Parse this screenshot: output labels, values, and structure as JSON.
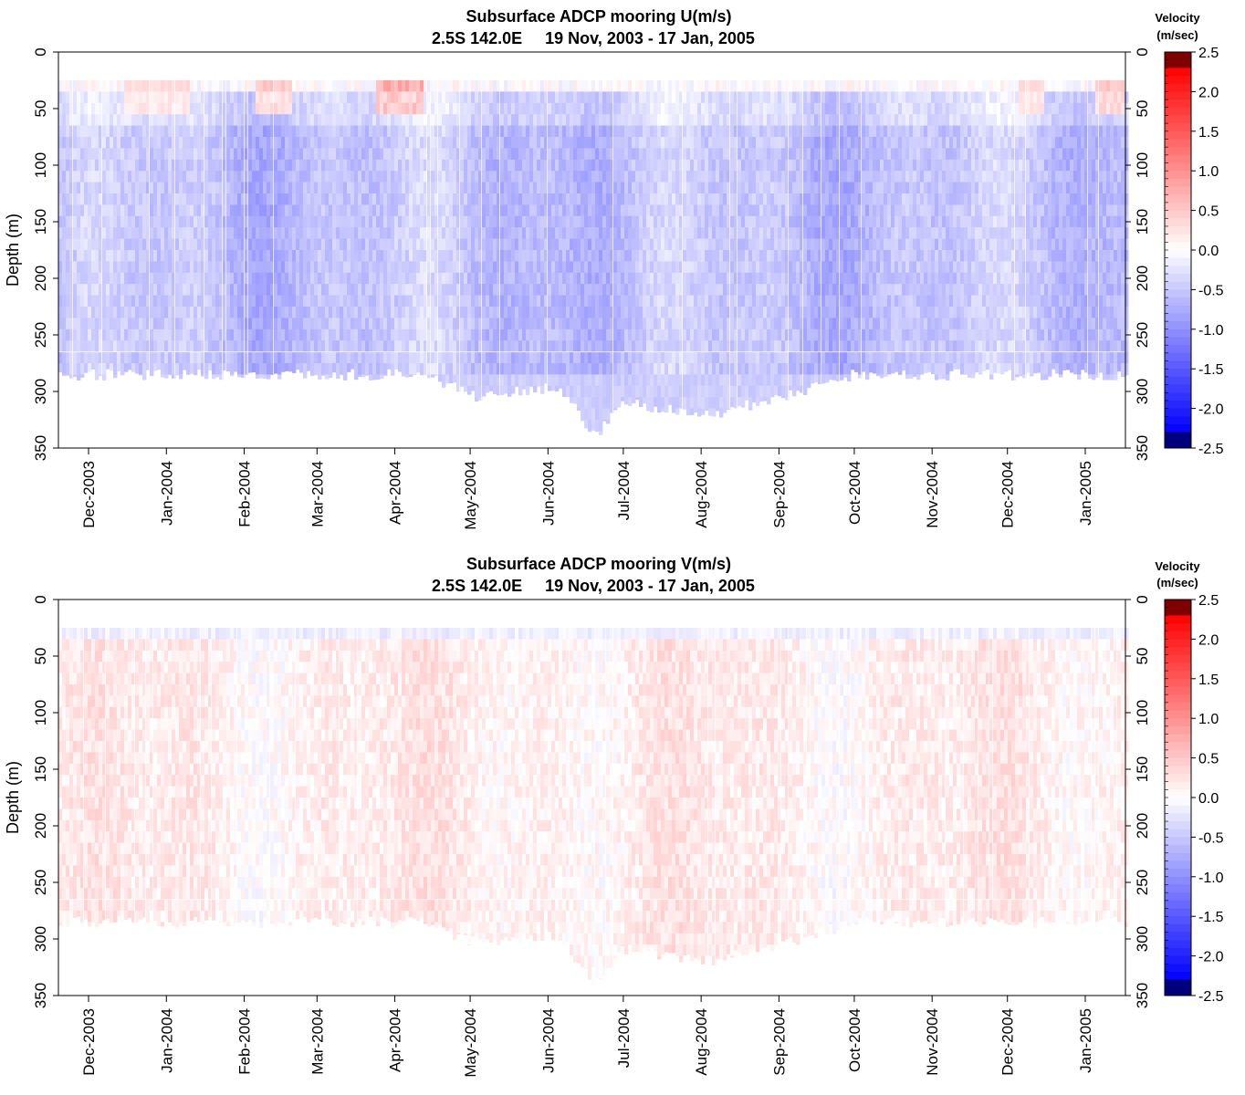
{
  "chart_data": [
    {
      "type": "heatmap",
      "id": "u",
      "title": "Subsurface ADCP mooring U(m/s)",
      "subtitle": "2.5S 142.0E     19 Nov, 2003 - 17 Jan, 2005",
      "ylabel": "Depth (m)",
      "ylim": [
        0,
        350
      ],
      "y_ticks": [
        "0",
        "50",
        "100",
        "150",
        "200",
        "250",
        "300",
        "350"
      ],
      "x_range": [
        "2003-11-19",
        "2005-01-17"
      ],
      "x_ticks": [
        "Dec-2003",
        "Jan-2004",
        "Feb-2004",
        "Mar-2004",
        "Apr-2004",
        "May-2004",
        "Jun-2004",
        "Jul-2004",
        "Aug-2004",
        "Sep-2004",
        "Oct-2004",
        "Nov-2004",
        "Dec-2004",
        "Jan-2005"
      ],
      "depth_coverage_m": [
        25,
        275
      ],
      "bottom_extension_m": [
        {
          "date": "2003-11-19",
          "depth": 285
        },
        {
          "date": "2004-01-05",
          "depth": 285
        },
        {
          "date": "2004-03-10",
          "depth": 285
        },
        {
          "date": "2004-04-12",
          "depth": 285
        },
        {
          "date": "2004-05-05",
          "depth": 305
        },
        {
          "date": "2004-06-05",
          "depth": 295
        },
        {
          "date": "2004-06-20",
          "depth": 340
        },
        {
          "date": "2004-07-01",
          "depth": 310
        },
        {
          "date": "2004-08-05",
          "depth": 320
        },
        {
          "date": "2004-09-01",
          "depth": 305
        },
        {
          "date": "2004-10-01",
          "depth": 285
        },
        {
          "date": "2004-12-20",
          "depth": 285
        },
        {
          "date": "2005-01-17",
          "depth": 285
        }
      ],
      "typical_values_mps": {
        "surface_layer_25_60m": [
          -0.6,
          0.6
        ],
        "interior_60_275m": [
          -1.0,
          -0.2
        ]
      },
      "surface_positive_periods": [
        {
          "from": "2003-12-15",
          "to": "2004-01-10",
          "value": 0.4
        },
        {
          "from": "2004-02-05",
          "to": "2004-02-20",
          "value": 0.6
        },
        {
          "from": "2004-03-25",
          "to": "2004-04-12",
          "value": 0.9
        },
        {
          "from": "2004-12-05",
          "to": "2004-12-15",
          "value": 0.4
        },
        {
          "from": "2005-01-05",
          "to": "2005-01-17",
          "value": 0.6
        }
      ]
    },
    {
      "type": "heatmap",
      "id": "v",
      "title": "Subsurface ADCP mooring V(m/s)",
      "subtitle": "2.5S 142.0E     19 Nov, 2003 - 17 Jan, 2005",
      "ylabel": "Depth (m)",
      "ylim": [
        0,
        350
      ],
      "y_ticks": [
        "0",
        "50",
        "100",
        "150",
        "200",
        "250",
        "300",
        "350"
      ],
      "x_range": [
        "2003-11-19",
        "2005-01-17"
      ],
      "x_ticks": [
        "Dec-2003",
        "Jan-2004",
        "Feb-2004",
        "Mar-2004",
        "Apr-2004",
        "May-2004",
        "Jun-2004",
        "Jul-2004",
        "Aug-2004",
        "Sep-2004",
        "Oct-2004",
        "Nov-2004",
        "Dec-2004",
        "Jan-2005"
      ],
      "depth_coverage_m": [
        25,
        275
      ],
      "typical_values_mps": {
        "surface_layer_25_40m": [
          -0.4,
          0.2
        ],
        "interior_40_300m": [
          -0.2,
          0.5
        ]
      }
    }
  ],
  "colorbar": {
    "title_line1": "Velocity",
    "title_line2": "(m/sec)",
    "range": [
      -2.5,
      2.5
    ],
    "ticks": [
      "2.5",
      "2.0",
      "1.5",
      "1.0",
      "0.5",
      "0.0",
      "-0.5",
      "-1.0",
      "-1.5",
      "-2.0",
      "-2.5"
    ],
    "colors": {
      "max": "#7f0000",
      "positive": "#ff0000",
      "zero": "#ffffff",
      "negative": "#0000ff",
      "min": "#00007f"
    }
  }
}
